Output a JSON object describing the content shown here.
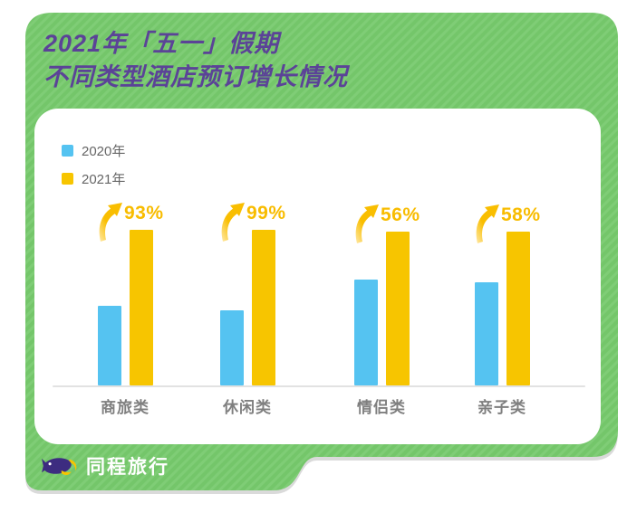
{
  "header": {
    "title_line1": "2021年「五一」假期",
    "title_line2": "不同类型酒店预订增长情况"
  },
  "legend": {
    "items": [
      {
        "label": "2020年",
        "color": "#55C3F1"
      },
      {
        "label": "2021年",
        "color": "#F7C500"
      }
    ]
  },
  "chart_data": {
    "type": "bar",
    "title": "2021年「五一」假期不同类型酒店预订增长情况",
    "categories": [
      "商旅类",
      "休闲类",
      "情侣类",
      "亲子类"
    ],
    "series": [
      {
        "name": "2020年",
        "color": "#55C3F1",
        "values": [
          51,
          48,
          68,
          66
        ]
      },
      {
        "name": "2021年",
        "color": "#F7C500",
        "values": [
          100,
          100,
          99,
          99
        ]
      }
    ],
    "growth_labels": [
      "93%",
      "99%",
      "56%",
      "58%"
    ],
    "growth_values_pct": [
      93,
      99,
      56,
      58
    ],
    "value_axis_note": "bar heights relative, 2021 normalized to 100",
    "grid": false,
    "legend_position": "top-left"
  },
  "footer": {
    "brand": "同程旅行"
  },
  "colors": {
    "background_green": "#74C66A",
    "stripe_green": "#7FCD76",
    "title_purple": "#5B4397",
    "bar_2020": "#55C3F1",
    "bar_2021": "#F7C500",
    "growth_label": "#F8BC00",
    "category_label": "#7F7F7F",
    "axis_line": "#E2E2E2",
    "logo_body": "#3D2C80"
  }
}
